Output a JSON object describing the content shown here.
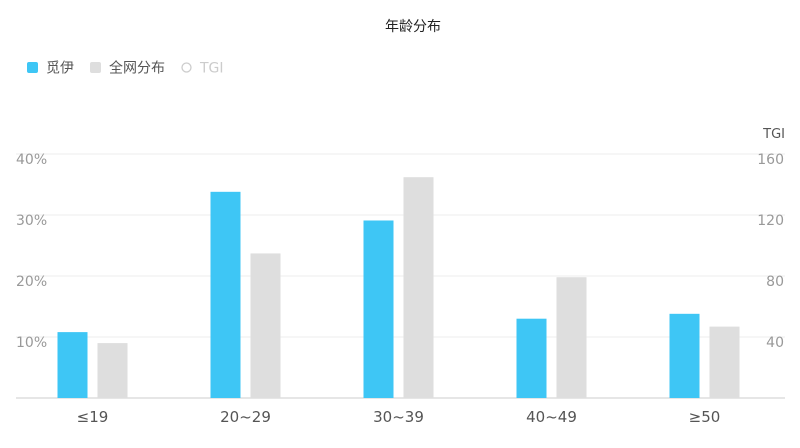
{
  "chart_data": {
    "type": "bar",
    "title": "年龄分布",
    "categories": [
      "≤19",
      "20~29",
      "30~39",
      "40~49",
      "≥50"
    ],
    "series": [
      {
        "name": "觅伊",
        "values": [
          10.8,
          33.8,
          29.1,
          13.0,
          13.8
        ],
        "color": "#3ec6f5"
      },
      {
        "name": "全网分布",
        "values": [
          9.0,
          23.7,
          36.2,
          19.8,
          11.7
        ],
        "color": "#dedede"
      }
    ],
    "legend": {
      "placement": "top-left",
      "items": [
        {
          "label": "觅伊",
          "marker": "square",
          "color": "#3ec6f5",
          "active": true
        },
        {
          "label": "全网分布",
          "marker": "square",
          "color": "#dedede",
          "active": true
        },
        {
          "label": "TGI",
          "marker": "circle",
          "color": "#cccccc",
          "active": false
        }
      ]
    },
    "y_left": {
      "ticks": [
        "10%",
        "20%",
        "30%",
        "40%"
      ],
      "tick_values": [
        10,
        20,
        30,
        40
      ],
      "ylim": [
        0,
        40
      ],
      "unit": "%"
    },
    "y_right": {
      "label": "TGI",
      "ticks": [
        "40",
        "80",
        "120",
        "160"
      ],
      "tick_values": [
        40,
        80,
        120,
        160
      ],
      "ylim": [
        0,
        160
      ]
    },
    "grid": true
  }
}
